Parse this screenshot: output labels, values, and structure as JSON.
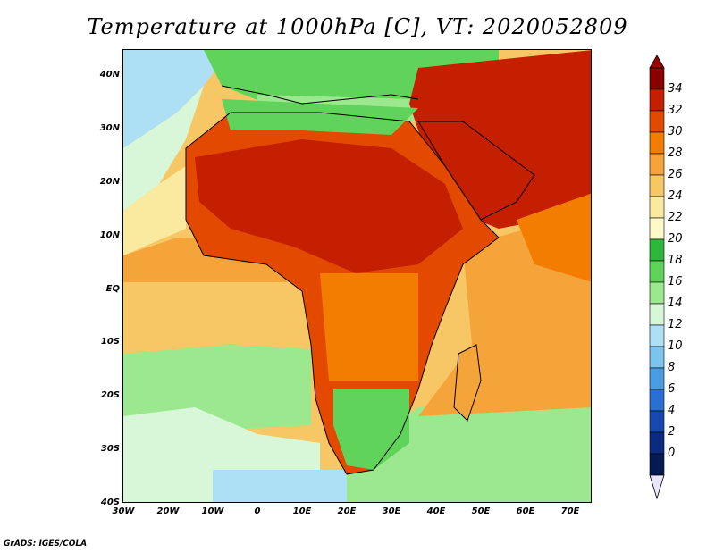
{
  "title": "Temperature at 1000hPa [C], VT: 2020052809",
  "footer": "GrADS: IGES/COLA",
  "latitude_labels": [
    "40N",
    "30N",
    "20N",
    "10N",
    "EQ",
    "10S",
    "20S",
    "30S",
    "40S"
  ],
  "longitude_labels": [
    "30W",
    "20W",
    "10W",
    "0",
    "10E",
    "20E",
    "30E",
    "40E",
    "50E",
    "60E",
    "70E"
  ],
  "colorbar": {
    "levels": [
      "34",
      "32",
      "30",
      "28",
      "26",
      "24",
      "22",
      "20",
      "18",
      "16",
      "14",
      "12",
      "10",
      "8",
      "6",
      "4",
      "2",
      "0"
    ],
    "colors": [
      "#8a0000",
      "#c41f00",
      "#e34a00",
      "#f27d00",
      "#f5a43a",
      "#f7c766",
      "#faeaa0",
      "#fff8c8",
      "#2cb83a",
      "#5fd35a",
      "#9be88f",
      "#d8f7d8",
      "#aee0f5",
      "#7bc4ee",
      "#4a9de3",
      "#2a6fd4",
      "#1747b0",
      "#0c2a80",
      "#061a52"
    ],
    "top_arrow_color": "#9a0000",
    "bottom_arrow_color": "#e9e6fb"
  },
  "palette": {
    "ocean_cold": "#aee0f5",
    "ocean_cool": "#d8f7d8",
    "ocean_mild": "#9be88f",
    "ocean_warm": "#f7c766",
    "land_hot": "#e34a00",
    "land_very_hot": "#c41f00",
    "land_mild": "#5fd35a",
    "coast": "#000000"
  }
}
